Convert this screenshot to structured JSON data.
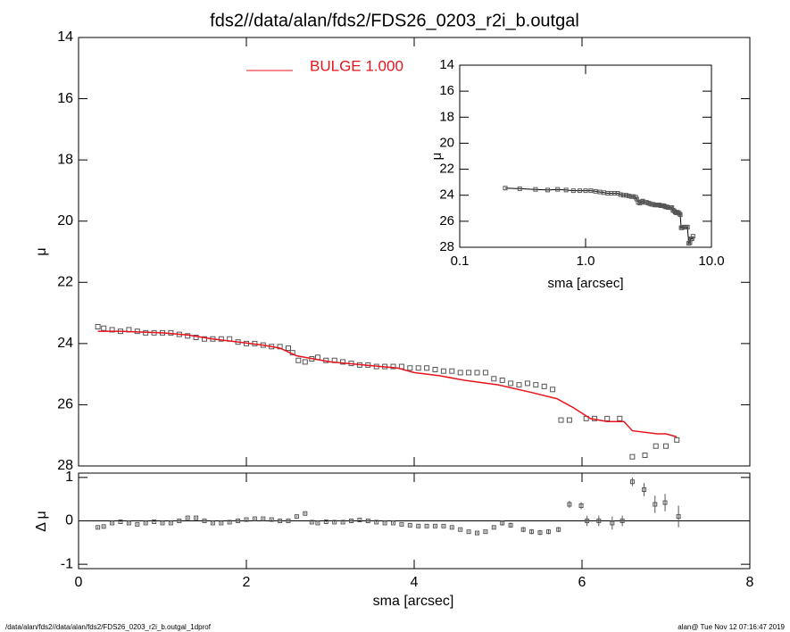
{
  "chart_data": [
    {
      "type": "scatter",
      "title": "fds2//data/alan/fds2/FDS26_0203_r2i_b.outgal",
      "ylabel": "μ",
      "xlim": [
        0,
        8
      ],
      "ylim": [
        28,
        14
      ],
      "yticks": [
        14,
        16,
        18,
        20,
        22,
        24,
        26,
        28
      ],
      "series": [
        {
          "style": "square",
          "color": "#555555",
          "x": [
            0.23,
            0.3,
            0.4,
            0.5,
            0.6,
            0.7,
            0.8,
            0.9,
            1.0,
            1.1,
            1.2,
            1.3,
            1.4,
            1.5,
            1.6,
            1.7,
            1.8,
            1.9,
            2.0,
            2.1,
            2.2,
            2.3,
            2.4,
            2.5,
            2.55,
            2.62,
            2.7,
            2.78,
            2.85,
            2.95,
            3.05,
            3.15,
            3.25,
            3.35,
            3.45,
            3.55,
            3.65,
            3.75,
            3.85,
            3.95,
            4.05,
            4.15,
            4.25,
            4.35,
            4.45,
            4.55,
            4.65,
            4.75,
            4.85,
            4.95,
            5.05,
            5.15,
            5.25,
            5.35,
            5.45,
            5.55,
            5.65,
            5.75,
            5.85,
            6.05,
            6.15,
            6.3,
            6.45,
            6.6,
            6.75,
            6.88,
            7.0,
            7.13
          ],
          "values": [
            23.45,
            23.5,
            23.55,
            23.6,
            23.55,
            23.6,
            23.65,
            23.65,
            23.65,
            23.65,
            23.7,
            23.75,
            23.8,
            23.85,
            23.85,
            23.85,
            23.85,
            23.95,
            24.0,
            24.0,
            24.05,
            24.1,
            24.1,
            24.15,
            24.3,
            24.55,
            24.6,
            24.5,
            24.45,
            24.55,
            24.55,
            24.6,
            24.65,
            24.7,
            24.7,
            24.75,
            24.75,
            24.75,
            24.75,
            24.8,
            24.8,
            24.8,
            24.85,
            24.9,
            24.9,
            24.95,
            24.95,
            24.95,
            24.95,
            25.15,
            25.2,
            25.3,
            25.35,
            25.3,
            25.35,
            25.4,
            25.5,
            26.5,
            26.5,
            26.45,
            26.45,
            26.45,
            26.45,
            27.7,
            27.65,
            27.35,
            27.35,
            27.15
          ]
        },
        {
          "style": "line",
          "name": "BULGE  1.000",
          "color": "#e8141b",
          "x": [
            0.23,
            0.5,
            1.0,
            1.3,
            1.6,
            1.9,
            2.2,
            2.4,
            2.6,
            2.8,
            3.0,
            3.4,
            3.8,
            4.0,
            4.3,
            4.6,
            5.0,
            5.4,
            5.7,
            5.9,
            6.1,
            6.3,
            6.5,
            6.6,
            6.9,
            7.0,
            7.13
          ],
          "values": [
            23.6,
            23.6,
            23.65,
            23.72,
            23.85,
            23.95,
            24.05,
            24.15,
            24.4,
            24.5,
            24.6,
            24.7,
            24.8,
            24.95,
            25.05,
            25.2,
            25.35,
            25.6,
            25.8,
            26.1,
            26.45,
            26.55,
            26.55,
            26.85,
            26.95,
            26.95,
            27.05
          ]
        }
      ]
    },
    {
      "type": "errorbar",
      "ylabel": "Δ μ",
      "xlabel": "sma [arcsec]",
      "color": "#555555",
      "xlim": [
        0,
        8
      ],
      "ylim": [
        -1.1,
        1.1
      ],
      "xticks": [
        0,
        2,
        4,
        6,
        8
      ],
      "yticks": [
        1,
        0,
        -1
      ],
      "reference_line": 0,
      "x": [
        0.23,
        0.3,
        0.4,
        0.5,
        0.6,
        0.7,
        0.8,
        0.9,
        1.0,
        1.1,
        1.2,
        1.3,
        1.4,
        1.5,
        1.6,
        1.7,
        1.8,
        1.9,
        2.0,
        2.1,
        2.2,
        2.3,
        2.4,
        2.5,
        2.6,
        2.7,
        2.78,
        2.85,
        2.95,
        3.05,
        3.15,
        3.25,
        3.35,
        3.45,
        3.55,
        3.65,
        3.75,
        3.85,
        3.95,
        4.05,
        4.15,
        4.25,
        4.35,
        4.45,
        4.55,
        4.65,
        4.75,
        4.85,
        4.95,
        5.05,
        5.15,
        5.3,
        5.4,
        5.5,
        5.6,
        5.72,
        5.85,
        5.99,
        6.06,
        6.2,
        6.36,
        6.48,
        6.6,
        6.74,
        6.87,
        6.99,
        7.15
      ],
      "values": [
        -0.15,
        -0.13,
        -0.05,
        -0.02,
        -0.05,
        -0.08,
        -0.05,
        -0.02,
        -0.05,
        -0.05,
        0,
        0.07,
        0.07,
        0,
        -0.05,
        -0.05,
        -0.03,
        0,
        0.03,
        0.05,
        0.05,
        0.03,
        0,
        0,
        0.1,
        0.17,
        -0.03,
        -0.05,
        -0.02,
        -0.03,
        -0.03,
        0,
        0.02,
        0,
        -0.03,
        -0.05,
        -0.05,
        -0.08,
        -0.1,
        -0.12,
        -0.12,
        -0.12,
        -0.12,
        -0.15,
        -0.2,
        -0.25,
        -0.28,
        -0.25,
        -0.15,
        -0.05,
        -0.1,
        -0.2,
        -0.25,
        -0.27,
        -0.25,
        -0.2,
        0.38,
        0.35,
        0,
        0,
        -0.05,
        0,
        0.9,
        0.72,
        0.38,
        0.42,
        0.1
      ],
      "errors": [
        0.02,
        0.02,
        0.02,
        0.02,
        0.02,
        0.02,
        0.02,
        0.02,
        0.02,
        0.02,
        0.02,
        0.02,
        0.02,
        0.02,
        0.02,
        0.02,
        0.02,
        0.02,
        0.02,
        0.02,
        0.02,
        0.02,
        0.02,
        0.02,
        0.02,
        0.02,
        0.02,
        0.02,
        0.02,
        0.02,
        0.02,
        0.02,
        0.02,
        0.02,
        0.02,
        0.02,
        0.02,
        0.02,
        0.02,
        0.02,
        0.02,
        0.02,
        0.02,
        0.02,
        0.02,
        0.02,
        0.02,
        0.02,
        0.02,
        0.06,
        0.06,
        0.06,
        0.06,
        0.06,
        0.06,
        0.06,
        0.08,
        0.08,
        0.12,
        0.12,
        0.15,
        0.12,
        0.1,
        0.15,
        0.2,
        0.2,
        0.25
      ]
    },
    {
      "type": "scatter",
      "xscale": "log",
      "xlabel": "sma [arcsec]",
      "ylabel": "μ",
      "xlim": [
        0.1,
        10
      ],
      "ylim": [
        28,
        14
      ],
      "xticks": [
        0.1,
        {
          "value": 1,
          "label": "1.0"
        },
        {
          "value": 10,
          "label": "10.0"
        }
      ],
      "yticks": [
        14,
        16,
        18,
        20,
        22,
        24,
        26,
        28
      ]
    }
  ],
  "footer": {
    "left": "/data/alan/fds2//data/alan/fds2/FDS26_0203_r2i_b.outgal_1dprof",
    "right": "alan@  Tue Nov 12 07:16:47 2019"
  }
}
